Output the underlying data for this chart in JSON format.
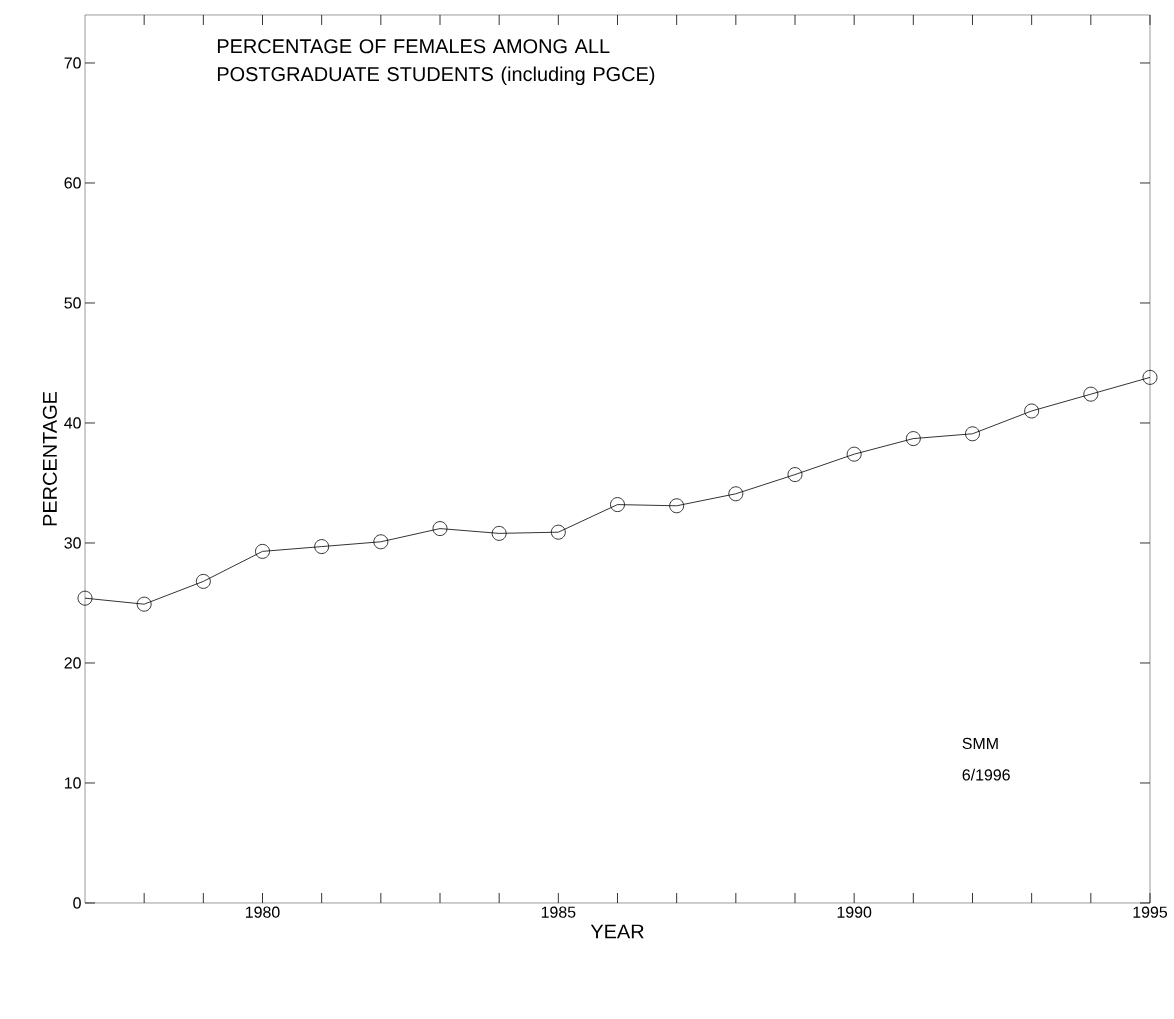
{
  "chart_data": {
    "type": "line",
    "title": "PERCENTAGE OF FEMALES AMONG ALL POSTGRADUATE STUDENTS (including PGCE)",
    "xlabel": "YEAR",
    "ylabel": "PERCENTAGE",
    "x": [
      1977,
      1978,
      1979,
      1980,
      1981,
      1982,
      1983,
      1984,
      1985,
      1986,
      1987,
      1988,
      1989,
      1990,
      1991,
      1992,
      1993,
      1994,
      1995
    ],
    "values": [
      25.4,
      24.9,
      26.8,
      29.3,
      29.7,
      30.1,
      31.2,
      30.8,
      30.9,
      33.2,
      33.1,
      34.1,
      35.7,
      37.4,
      38.7,
      39.1,
      41.0,
      42.4,
      43.8
    ],
    "color": "#000000",
    "marker": "circle",
    "line_style": "solid",
    "grid": false,
    "xlim": [
      1977,
      1995
    ],
    "ylim": [
      0,
      74
    ],
    "xticks": [
      {
        "value": 1978,
        "label": null
      },
      {
        "value": 1979,
        "label": null
      },
      1980,
      {
        "value": 1981,
        "label": null
      },
      {
        "value": 1982,
        "label": null
      },
      {
        "value": 1983,
        "label": null
      },
      {
        "value": 1984,
        "label": null
      },
      1985,
      {
        "value": 1986,
        "label": null
      },
      {
        "value": 1987,
        "label": null
      },
      {
        "value": 1988,
        "label": null
      },
      {
        "value": 1989,
        "label": null
      },
      1990,
      {
        "value": 1991,
        "label": null
      },
      {
        "value": 1992,
        "label": null
      },
      {
        "value": 1993,
        "label": null
      },
      {
        "value": 1994,
        "label": null
      },
      1995
    ],
    "yticks": [
      0,
      10,
      20,
      30,
      40,
      50,
      60,
      70
    ],
    "annotations": [
      "SMM",
      "6/1996"
    ]
  }
}
